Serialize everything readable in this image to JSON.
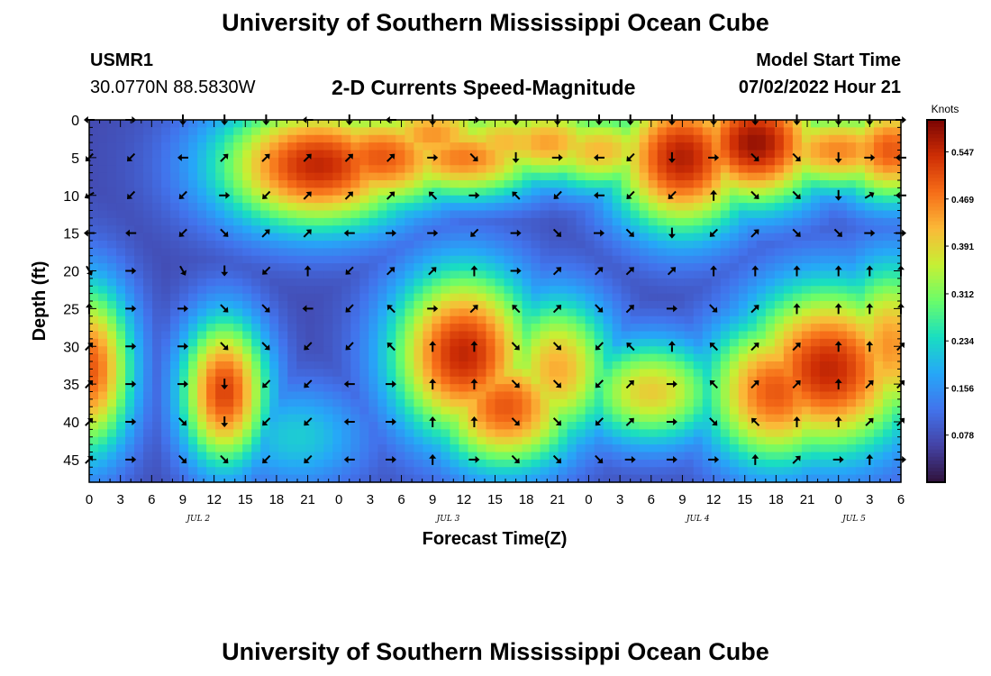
{
  "header": {
    "title": "University of Southern Mississippi Ocean Cube",
    "station_id": "USMR1",
    "coords": "30.0770N  88.5830W",
    "plot_title": "2-D Currents Speed-Magnitude",
    "start_label": "Model Start Time",
    "start_value": "07/02/2022 Hour 21"
  },
  "footer": {
    "title": "University of Southern Mississippi Ocean Cube"
  },
  "chart_data": {
    "type": "heatmap",
    "title": "2-D Currents Speed-Magnitude",
    "xlabel": "Forecast Time(Z)",
    "ylabel": "Depth (ft)",
    "xlim_hours": [
      0,
      78
    ],
    "ylim_depth_ft": [
      48,
      0
    ],
    "x_tick_labels": [
      "0",
      "3",
      "6",
      "9",
      "12",
      "15",
      "18",
      "21",
      "0",
      "3",
      "6",
      "9",
      "12",
      "15",
      "18",
      "21",
      "0",
      "3",
      "6",
      "9",
      "12",
      "15",
      "18",
      "21",
      "0",
      "3",
      "6"
    ],
    "y_ticks": [
      0,
      5,
      10,
      15,
      20,
      25,
      30,
      35,
      40,
      45
    ],
    "date_labels": [
      {
        "label": "JUL 2",
        "hour": 10.5
      },
      {
        "label": "JUL 3",
        "hour": 34.5
      },
      {
        "label": "JUL 4",
        "hour": 58.5
      },
      {
        "label": "JUL 5",
        "hour": 73.5
      }
    ],
    "colorbar": {
      "unit_label": "Knots",
      "range": [
        0.0,
        0.6
      ],
      "ticks": [
        "0.547",
        "0.469",
        "0.391",
        "0.312",
        "0.234",
        "0.156",
        "0.078"
      ]
    },
    "speed_blobs_note": "approximate speed field in knots: hour, depth, peak value, spread",
    "speed_field": [
      {
        "hour": 22,
        "depth": 6,
        "value": 0.55,
        "sh": 7,
        "sd": 6
      },
      {
        "hour": 28,
        "depth": 5,
        "value": 0.5,
        "sh": 6,
        "sd": 5
      },
      {
        "hour": 33,
        "depth": 2,
        "value": 0.45,
        "sh": 5,
        "sd": 4
      },
      {
        "hour": 36,
        "depth": 5,
        "value": 0.47,
        "sh": 6,
        "sd": 4
      },
      {
        "hour": 40,
        "depth": 3,
        "value": 0.42,
        "sh": 5,
        "sd": 4
      },
      {
        "hour": 44,
        "depth": 3,
        "value": 0.44,
        "sh": 5,
        "sd": 4
      },
      {
        "hour": 49,
        "depth": 4,
        "value": 0.42,
        "sh": 5,
        "sd": 4
      },
      {
        "hour": 57,
        "depth": 5,
        "value": 0.56,
        "sh": 5,
        "sd": 7
      },
      {
        "hour": 64,
        "depth": 3,
        "value": 0.58,
        "sh": 5,
        "sd": 6
      },
      {
        "hour": 72,
        "depth": 4,
        "value": 0.46,
        "sh": 6,
        "sd": 4
      },
      {
        "hour": 77,
        "depth": 4,
        "value": 0.5,
        "sh": 4,
        "sd": 5
      },
      {
        "hour": 0,
        "depth": 33,
        "value": 0.5,
        "sh": 3,
        "sd": 8
      },
      {
        "hour": 13,
        "depth": 36,
        "value": 0.52,
        "sh": 3,
        "sd": 7
      },
      {
        "hour": 36,
        "depth": 31,
        "value": 0.55,
        "sh": 5,
        "sd": 8
      },
      {
        "hour": 40,
        "depth": 38,
        "value": 0.5,
        "sh": 5,
        "sd": 6
      },
      {
        "hour": 45,
        "depth": 33,
        "value": 0.43,
        "sh": 4,
        "sd": 7
      },
      {
        "hour": 54,
        "depth": 36,
        "value": 0.4,
        "sh": 5,
        "sd": 5
      },
      {
        "hour": 66,
        "depth": 36,
        "value": 0.5,
        "sh": 5,
        "sd": 7
      },
      {
        "hour": 71,
        "depth": 33,
        "value": 0.55,
        "sh": 6,
        "sd": 8
      },
      {
        "hour": 77,
        "depth": 30,
        "value": 0.45,
        "sh": 4,
        "sd": 8
      },
      {
        "hour": 20,
        "depth": 42,
        "value": 0.22,
        "sh": 5,
        "sd": 5
      }
    ],
    "vectors": {
      "hours": [
        0,
        4,
        9,
        13,
        17,
        21,
        25,
        29,
        33,
        37,
        41,
        45,
        49,
        52,
        56,
        60,
        64,
        68,
        72,
        75,
        78
      ],
      "depths": [
        0,
        5,
        10,
        15,
        20,
        25,
        30,
        35,
        40,
        45
      ],
      "angle_note": "compass bearing in degrees the arrow points to (0=up)",
      "angles": [
        [
          270,
          90,
          180,
          180,
          180,
          270,
          180,
          270,
          180,
          90,
          180,
          180,
          180,
          180,
          180,
          180,
          180,
          180,
          180,
          180,
          90
        ],
        [
          225,
          225,
          270,
          45,
          45,
          45,
          45,
          45,
          90,
          135,
          180,
          90,
          270,
          225,
          180,
          90,
          135,
          135,
          180,
          90,
          270
        ],
        [
          240,
          225,
          225,
          90,
          225,
          45,
          45,
          45,
          315,
          90,
          315,
          225,
          270,
          225,
          225,
          0,
          135,
          135,
          180,
          60,
          270
        ],
        [
          270,
          270,
          225,
          135,
          45,
          45,
          270,
          90,
          90,
          225,
          90,
          135,
          90,
          135,
          180,
          225,
          45,
          135,
          135,
          90,
          90
        ],
        [
          150,
          90,
          150,
          180,
          225,
          0,
          225,
          45,
          45,
          0,
          90,
          45,
          45,
          45,
          45,
          0,
          0,
          0,
          0,
          0,
          0
        ],
        [
          0,
          90,
          90,
          135,
          135,
          270,
          225,
          315,
          90,
          45,
          315,
          45,
          135,
          45,
          90,
          135,
          45,
          0,
          0,
          0,
          0
        ],
        [
          45,
          90,
          90,
          135,
          135,
          225,
          225,
          315,
          0,
          0,
          135,
          135,
          225,
          315,
          0,
          315,
          45,
          45,
          0,
          0,
          45
        ],
        [
          45,
          90,
          90,
          180,
          225,
          225,
          270,
          90,
          0,
          0,
          135,
          135,
          225,
          45,
          90,
          315,
          45,
          45,
          0,
          45,
          45
        ],
        [
          45,
          90,
          135,
          180,
          225,
          225,
          270,
          90,
          0,
          0,
          135,
          135,
          225,
          45,
          90,
          135,
          315,
          0,
          0,
          45,
          45
        ],
        [
          45,
          90,
          135,
          135,
          225,
          225,
          270,
          90,
          0,
          90,
          135,
          135,
          135,
          90,
          90,
          90,
          0,
          45,
          90,
          0,
          90
        ]
      ]
    }
  }
}
